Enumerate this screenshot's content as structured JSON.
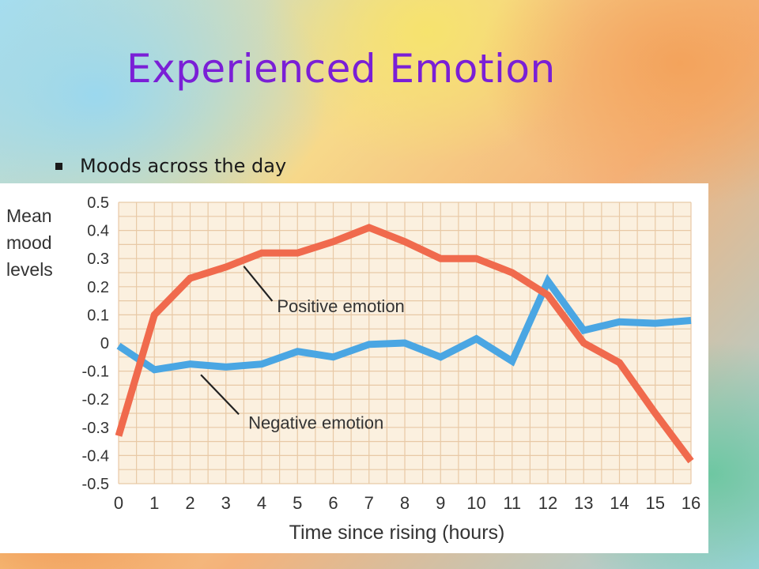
{
  "slide": {
    "title": "Experienced Emotion",
    "bullet": "Moods across the day"
  },
  "colors": {
    "title": "#7a1fd6",
    "positive": "#f06a4d",
    "negative": "#4aa6e3",
    "plot_bg": "#fbf0df",
    "grid": "#e8c9a6"
  },
  "icons": {
    "bullet": "square-bullet-icon"
  },
  "chart_data": {
    "type": "line",
    "title": "",
    "xlabel": "Time since rising (hours)",
    "ylabel_lines": [
      "Mean",
      "mood",
      "levels"
    ],
    "x": [
      0,
      1,
      2,
      3,
      4,
      5,
      6,
      7,
      8,
      9,
      10,
      11,
      12,
      13,
      14,
      15,
      16
    ],
    "xlim": [
      0,
      16
    ],
    "ylim": [
      -0.5,
      0.5
    ],
    "x_ticks": [
      "0",
      "1",
      "2",
      "3",
      "4",
      "5",
      "6",
      "7",
      "8",
      "9",
      "10",
      "11",
      "12",
      "13",
      "14",
      "15",
      "16"
    ],
    "y_ticks": [
      "0.5",
      "0.4",
      "0.3",
      "0.2",
      "0.1",
      "0",
      "-0.1",
      "-0.2",
      "-0.3",
      "-0.4",
      "-0.5"
    ],
    "grid": true,
    "series": [
      {
        "name": "Positive emotion",
        "values": [
          -0.33,
          0.1,
          0.23,
          0.27,
          0.32,
          0.32,
          0.36,
          0.41,
          0.36,
          0.3,
          0.3,
          0.25,
          0.17,
          0.0,
          -0.07,
          -0.25,
          -0.42
        ]
      },
      {
        "name": "Negative emotion",
        "values": [
          -0.01,
          -0.095,
          -0.075,
          -0.085,
          -0.075,
          -0.03,
          -0.05,
          -0.005,
          0.0,
          -0.05,
          0.015,
          -0.065,
          0.22,
          0.045,
          0.075,
          0.07,
          0.08
        ]
      }
    ]
  }
}
